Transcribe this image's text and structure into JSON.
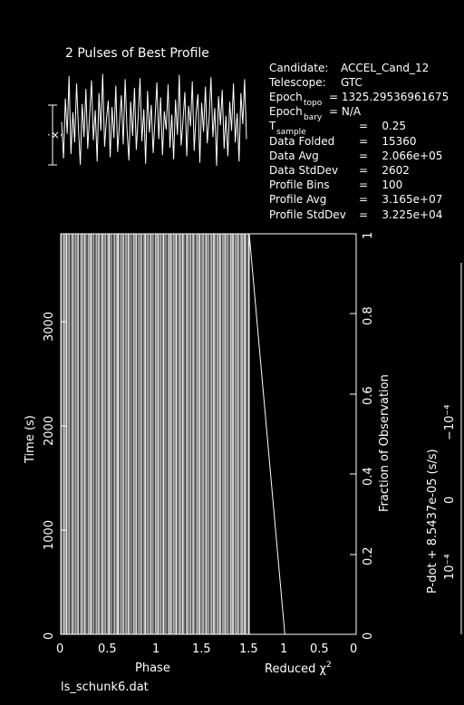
{
  "title": "2 Pulses of Best Profile",
  "footer_filename": "ls_schunk6.dat",
  "info": {
    "candidate": {
      "label": "Candidate:",
      "value": "ACCEL_Cand_12"
    },
    "telescope": {
      "label": "Telescope:",
      "value": "GTC"
    },
    "epoch_topo": {
      "label": "Epoch",
      "sub": "topo",
      "value": "= 1325.29536961675"
    },
    "epoch_bary": {
      "label": "Epoch",
      "sub": "bary",
      "value": "= N/A"
    },
    "t_sample": {
      "label": "T",
      "sub": "sample",
      "value": "=    0.25"
    },
    "data_folded": {
      "label": "Data Folded",
      "value": "=    15360"
    },
    "data_avg": {
      "label": "Data Avg",
      "value": "=    2.066e+05"
    },
    "data_stddev": {
      "label": "Data StdDev",
      "value": "=    2602"
    },
    "profile_bins": {
      "label": "Profile Bins",
      "value": "=    100"
    },
    "profile_avg": {
      "label": "Profile Avg",
      "value": "=    3.165e+07"
    },
    "profile_stddev": {
      "label": "Profile StdDev",
      "value": "=    3.225e+04"
    }
  },
  "right_axis_label": "P-dot + 8.5437e-05 (s/s)",
  "right_axis_ticks": [
    "10⁻⁴",
    "0",
    "−10⁻⁴"
  ],
  "chart_data": [
    {
      "type": "line",
      "name": "profile",
      "title": "2 Pulses of Best Profile",
      "x_range": [
        0,
        2
      ],
      "values": [
        0.52,
        0.18,
        0.74,
        0.41,
        0.95,
        0.22,
        0.61,
        0.33,
        0.88,
        0.47,
        0.12,
        0.69,
        0.38,
        0.83,
        0.27,
        0.58,
        0.91,
        0.35,
        0.63,
        0.15,
        0.79,
        0.44,
        0.97,
        0.29,
        0.55,
        0.72,
        0.19,
        0.66,
        0.37,
        0.86,
        0.24,
        0.51,
        0.77,
        0.31,
        0.92,
        0.46,
        0.16,
        0.71,
        0.39,
        0.84,
        0.26,
        0.57,
        0.93,
        0.34,
        0.64,
        0.13,
        0.81,
        0.42,
        0.68,
        0.23,
        0.54,
        0.89,
        0.36,
        0.75,
        0.21,
        0.62,
        0.45,
        0.87,
        0.28,
        0.59,
        0.17,
        0.73,
        0.4,
        0.96,
        0.3,
        0.53,
        0.8,
        0.2,
        0.67,
        0.48,
        0.9,
        0.25,
        0.6,
        0.78,
        0.14,
        0.7,
        0.43,
        0.85,
        0.32,
        0.56,
        0.94,
        0.38,
        0.65,
        0.11,
        0.76,
        0.49,
        0.82,
        0.27,
        0.58,
        0.2,
        0.71,
        0.44,
        0.88,
        0.33,
        0.6,
        0.15,
        0.79,
        0.5,
        0.92,
        0.36
      ]
    },
    {
      "type": "heatmap",
      "name": "time-phase",
      "xlabel": "Phase",
      "ylabel": "Time (s)",
      "x_ticks": [
        "0",
        "0.5",
        "1",
        "1.5"
      ],
      "y_ticks": [
        "0",
        "1000",
        "2000",
        "3000"
      ],
      "xlim": [
        0,
        1.5
      ],
      "ylim": [
        0,
        3840
      ],
      "column_intensity": [
        0.62,
        0.21,
        0.85,
        0.44,
        0.93,
        0.35,
        0.7,
        0.18,
        0.55,
        0.8,
        0.29,
        0.66,
        0.4,
        0.9,
        0.12,
        0.58,
        0.77,
        0.33,
        0.86,
        0.47,
        0.24,
        0.69,
        0.52,
        0.96,
        0.3,
        0.63,
        0.15,
        0.74,
        0.41,
        0.88,
        0.26,
        0.57,
        0.82,
        0.37,
        0.71,
        0.2,
        0.64,
        0.91,
        0.43,
        0.53,
        0.1,
        0.79,
        0.34,
        0.67,
        0.98,
        0.28,
        0.6,
        0.45,
        0.84,
        0.23,
        0.72,
        0.38,
        0.94,
        0.31,
        0.56,
        0.17,
        0.76,
        0.49,
        0.87,
        0.25,
        0.65,
        0.42,
        0.8,
        0.14,
        0.59,
        0.92,
        0.36,
        0.7,
        0.22,
        0.83,
        0.46,
        0.61,
        0.19,
        0.75,
        0.5,
        0.89,
        0.32,
        0.68,
        0.27,
        0.95,
        0.4,
        0.54,
        0.16,
        0.78,
        0.6,
        0.85,
        0.3,
        0.66,
        0.44,
        0.97,
        0.21,
        0.57,
        0.73,
        0.35,
        0.9,
        0.48,
        0.13,
        0.81,
        0.62,
        0.39,
        0.71,
        0.26,
        0.86,
        0.52,
        0.18,
        0.77,
        0.43,
        0.94,
        0.33,
        0.58,
        0.69,
        0.24,
        0.88,
        0.47,
        0.64,
        0.15,
        0.8,
        0.37,
        0.91,
        0.55,
        0.29,
        0.74,
        0.41,
        0.98,
        0.2,
        0.63,
        0.5,
        0.84,
        0.34,
        0.7,
        0.12,
        0.79,
        0.57,
        0.92,
        0.28,
        0.67,
        0.45,
        0.87,
        0.23,
        0.61,
        0.76,
        0.38,
        0.95,
        0.53,
        0.17,
        0.82
      ]
    },
    {
      "type": "line",
      "name": "reduced-chi2",
      "xlabel": "Reduced χ²",
      "ylabel": "Fraction of Observation",
      "x_ticks": [
        "1.5",
        "1",
        "0.5",
        "0"
      ],
      "y_ticks": [
        "0",
        "0.2",
        "0.4",
        "0.6",
        "0.8",
        "1"
      ],
      "x_reversed": true,
      "xlim": [
        1.5,
        0
      ],
      "ylim": [
        0,
        1
      ],
      "points": [
        {
          "chi2": 1.0,
          "fraction": 0.0
        },
        {
          "chi2": 1.5,
          "fraction": 1.0
        }
      ]
    }
  ]
}
